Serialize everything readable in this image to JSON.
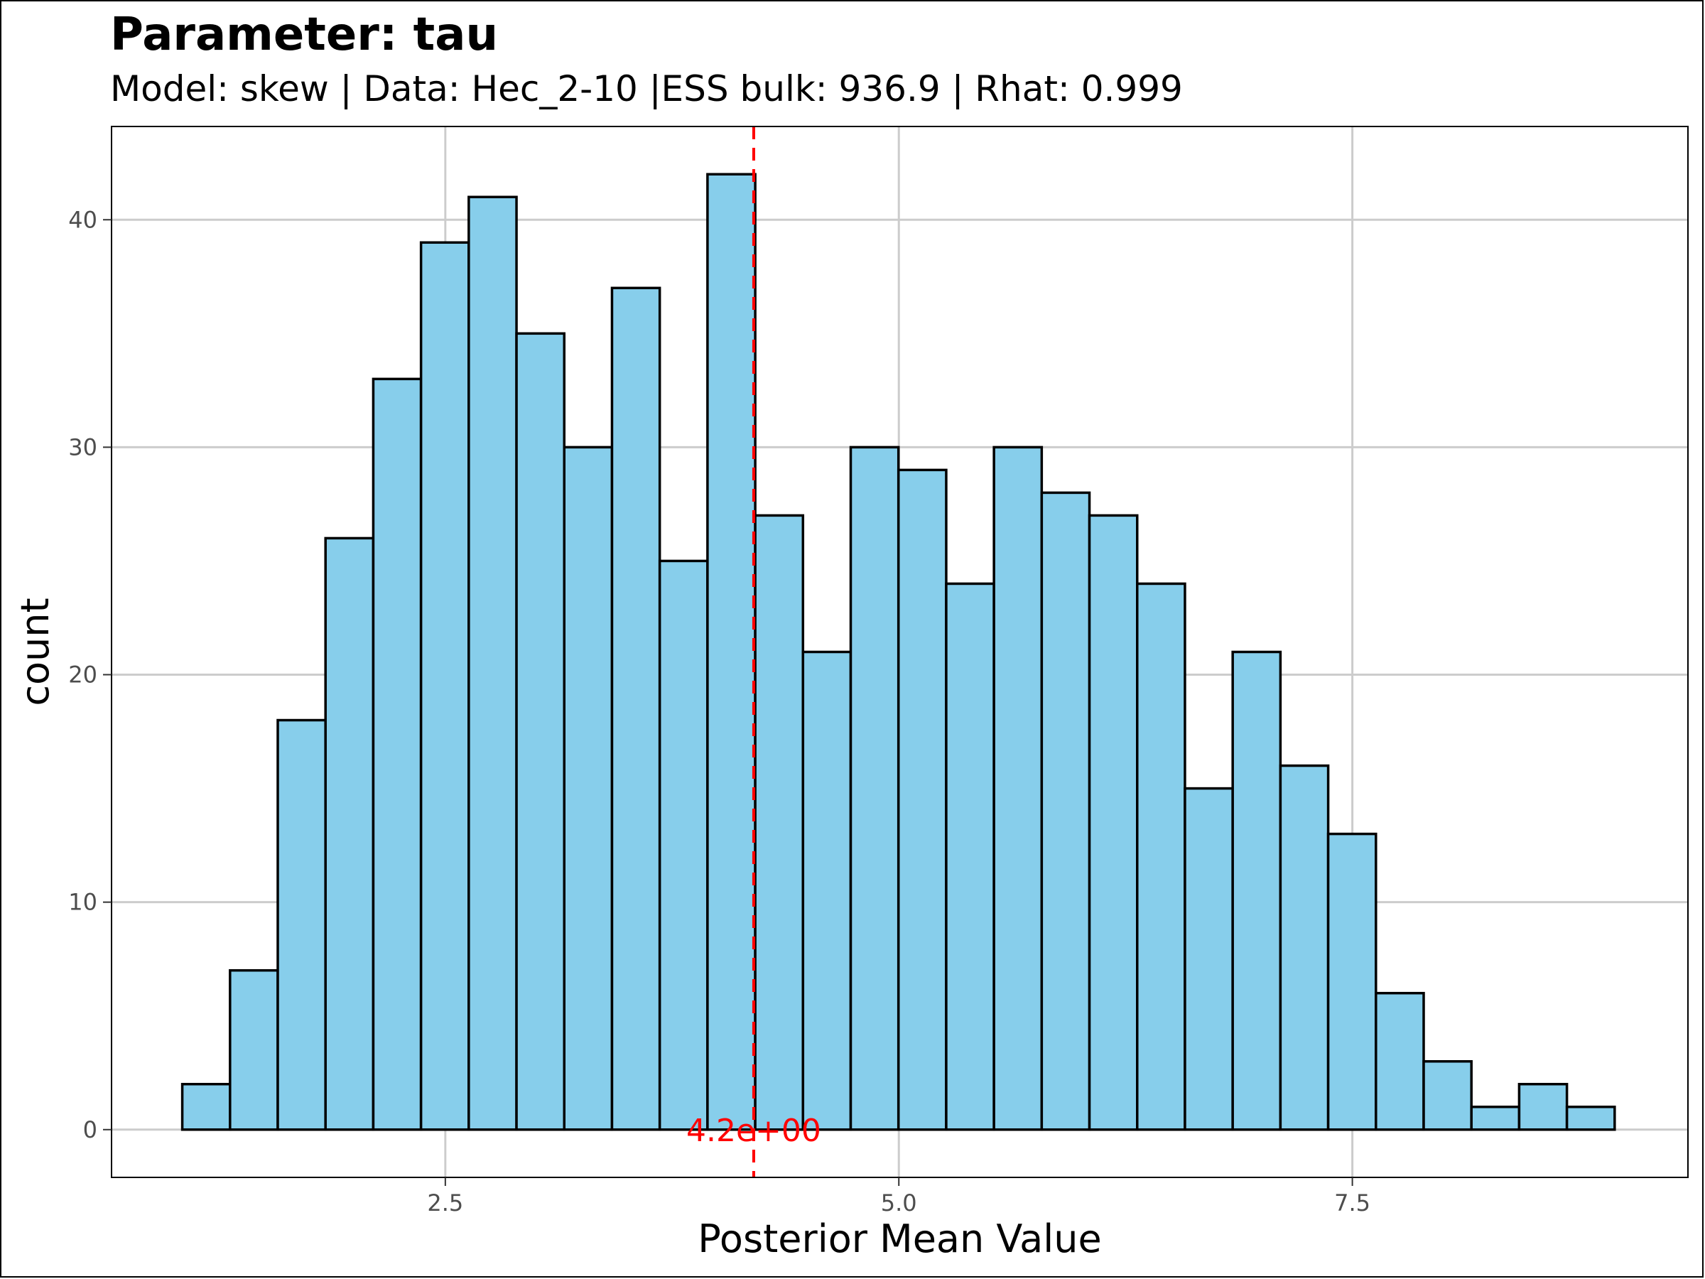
{
  "title": "Parameter: tau",
  "subtitle": "Model: skew | Data: Hec_2-10 |ESS bulk: 936.9 | Rhat: 0.999",
  "chart_data": {
    "type": "histogram",
    "title": "Parameter: tau",
    "subtitle": "Model: skew | Data: Hec_2-10 |ESS bulk: 936.9 | Rhat: 0.999",
    "xlabel": "Posterior Mean Value",
    "ylabel": "count",
    "xlim": [
      0.66,
      9.35
    ],
    "ylim": [
      -2.1,
      44.1
    ],
    "x_ticks": [
      2.5,
      5.0,
      7.5
    ],
    "x_tick_labels": [
      "2.5",
      "5.0",
      "7.5"
    ],
    "y_ticks": [
      0,
      10,
      20,
      30,
      40
    ],
    "y_tick_labels": [
      "0",
      "10",
      "20",
      "30",
      "40"
    ],
    "grid": true,
    "bin_start": 1.05,
    "bin_width": 0.2632,
    "counts": [
      2,
      7,
      18,
      26,
      33,
      39,
      41,
      35,
      30,
      37,
      25,
      42,
      27,
      21,
      30,
      29,
      24,
      30,
      28,
      27,
      24,
      15,
      21,
      16,
      13,
      6,
      3,
      1,
      2,
      1
    ],
    "bar_fill": "#87CEEB",
    "bar_outline": "#000000",
    "reference_line": {
      "x": 4.2,
      "label": "4.2e+00",
      "color": "#FF0000",
      "style": "dashed"
    }
  }
}
